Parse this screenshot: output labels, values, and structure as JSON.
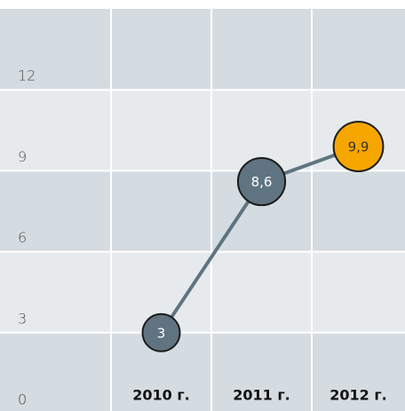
{
  "chart_data": {
    "type": "line",
    "categories": [
      "2010 г.",
      "2011 г.",
      "2012 г."
    ],
    "values": [
      3,
      8.6,
      9.9
    ],
    "value_labels": [
      "3",
      "8,6",
      "9,9"
    ],
    "color": "#5f7480",
    "point_colors": [
      "#5f7480",
      "#5f7480",
      "#f7a600"
    ],
    "ylim": [
      0,
      15
    ],
    "yticks": [
      0,
      3,
      6,
      9,
      12
    ],
    "grid": true
  }
}
